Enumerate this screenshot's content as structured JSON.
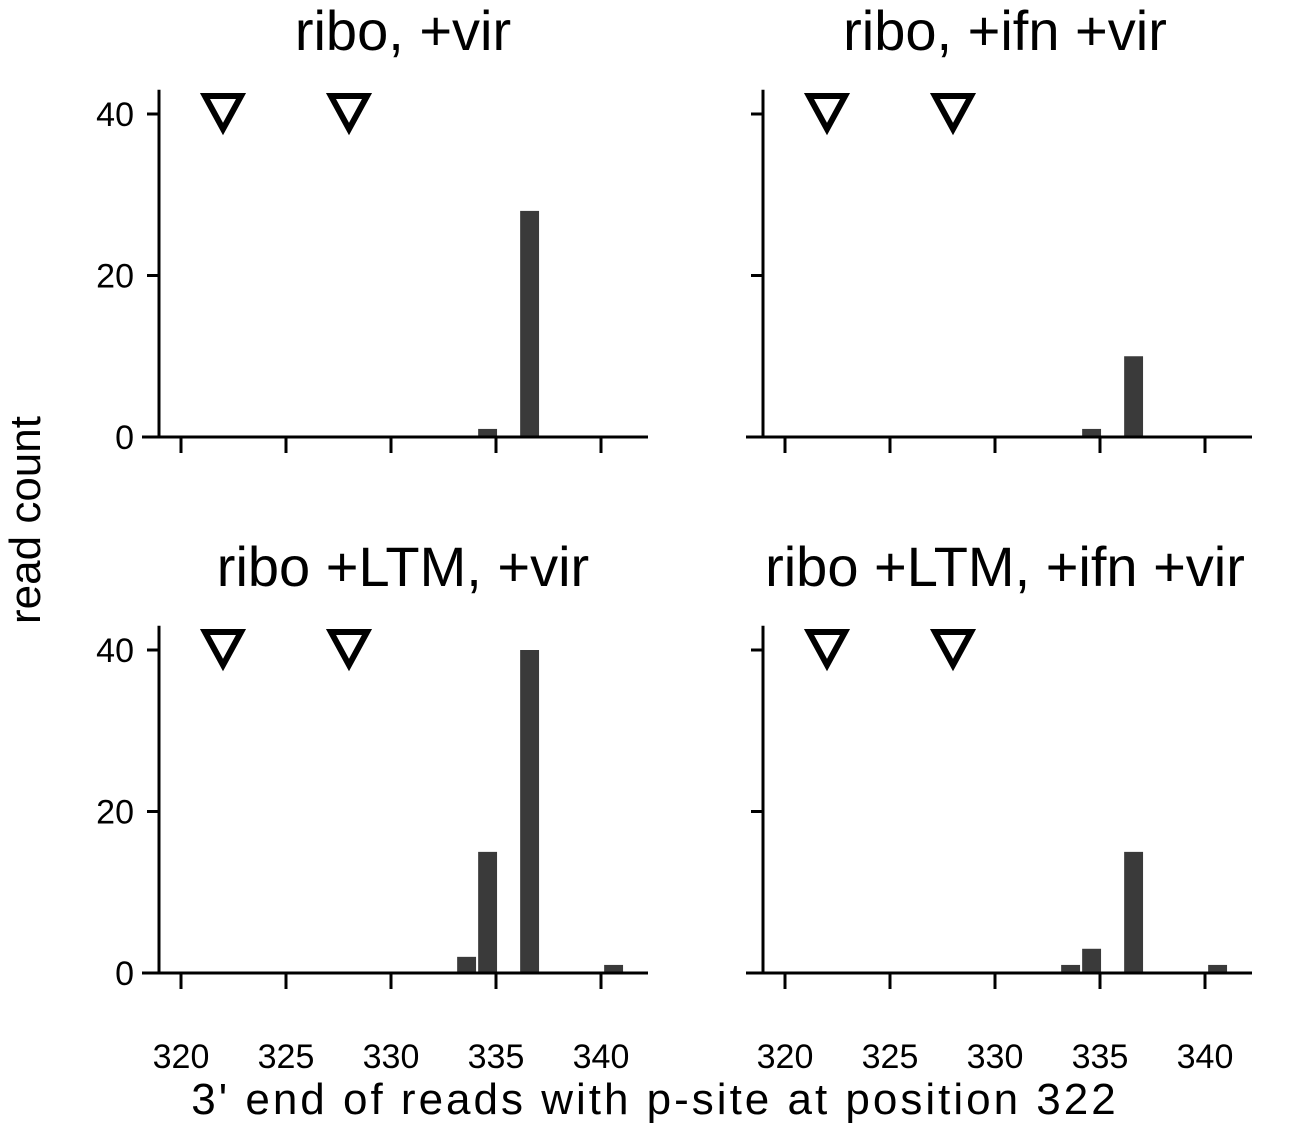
{
  "figure": {
    "ylabel": "read count",
    "xlabel": "3' end of reads with p-site at position 322"
  },
  "chart_data": [
    {
      "type": "bar",
      "title": "ribo, +vir",
      "x": [
        334,
        335,
        337
      ],
      "values": [
        0,
        1,
        28
      ],
      "bar_color": "#3a3a3a",
      "xlim": [
        319,
        342
      ],
      "ylim": [
        0,
        43
      ],
      "xticks": [
        320,
        325,
        330,
        335,
        340
      ],
      "yticks": [
        0,
        20,
        40
      ],
      "show_xtick_labels": false,
      "show_ytick_labels": true,
      "markers": {
        "shape": "inverted-triangle",
        "x": [
          322,
          328
        ],
        "y": 40
      }
    },
    {
      "type": "bar",
      "title": "ribo, +ifn +vir",
      "x": [
        335,
        337
      ],
      "values": [
        1,
        10
      ],
      "bar_color": "#3a3a3a",
      "xlim": [
        319,
        342
      ],
      "ylim": [
        0,
        43
      ],
      "xticks": [
        320,
        325,
        330,
        335,
        340
      ],
      "yticks": [
        0,
        20,
        40
      ],
      "show_xtick_labels": false,
      "show_ytick_labels": false,
      "markers": {
        "shape": "inverted-triangle",
        "x": [
          322,
          328
        ],
        "y": 40
      }
    },
    {
      "type": "bar",
      "title": "ribo +LTM, +vir",
      "x": [
        334,
        335,
        337,
        341
      ],
      "values": [
        2,
        15,
        40,
        1
      ],
      "bar_color": "#3a3a3a",
      "xlim": [
        319,
        342
      ],
      "ylim": [
        0,
        43
      ],
      "xticks": [
        320,
        325,
        330,
        335,
        340
      ],
      "yticks": [
        0,
        20,
        40
      ],
      "show_xtick_labels": true,
      "show_ytick_labels": true,
      "markers": {
        "shape": "inverted-triangle",
        "x": [
          322,
          328
        ],
        "y": 40
      }
    },
    {
      "type": "bar",
      "title": "ribo +LTM, +ifn +vir",
      "x": [
        334,
        335,
        337,
        341
      ],
      "values": [
        1,
        3,
        15,
        1
      ],
      "bar_color": "#3a3a3a",
      "xlim": [
        319,
        342
      ],
      "ylim": [
        0,
        43
      ],
      "xticks": [
        320,
        325,
        330,
        335,
        340
      ],
      "yticks": [
        0,
        20,
        40
      ],
      "show_xtick_labels": true,
      "show_ytick_labels": false,
      "markers": {
        "shape": "inverted-triangle",
        "x": [
          322,
          328
        ],
        "y": 40
      }
    }
  ]
}
